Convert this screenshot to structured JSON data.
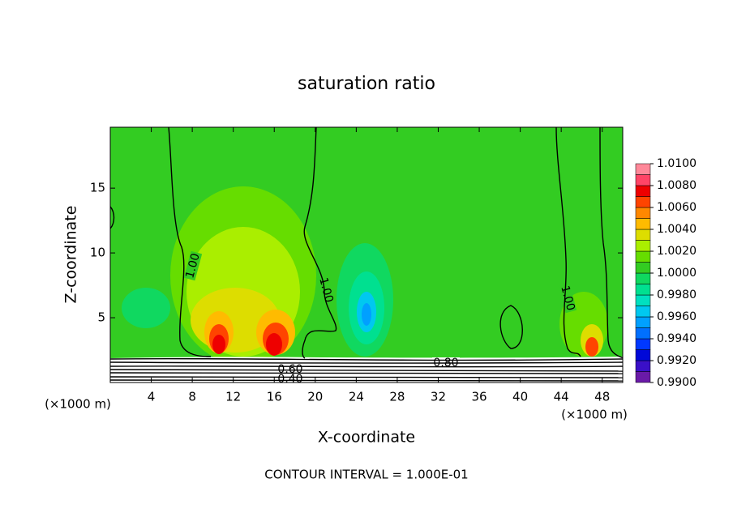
{
  "chart_data": {
    "type": "contour",
    "title": "saturation ratio",
    "x_label": "X-coordinate",
    "y_label": "Z-coordinate",
    "x_unit": "(×1000 m)",
    "y_unit": "(×1000 m)",
    "xlim": [
      0,
      50
    ],
    "xticks": [
      4,
      8,
      12,
      16,
      20,
      24,
      28,
      32,
      36,
      40,
      44,
      48
    ],
    "ylim": [
      0,
      19.7
    ],
    "yticks": [
      5,
      10,
      15
    ],
    "colorbar": {
      "levels": [
        0.99,
        0.991,
        0.992,
        0.993,
        0.994,
        0.995,
        0.996,
        0.997,
        0.998,
        0.999,
        1.0,
        1.001,
        1.002,
        1.003,
        1.004,
        1.005,
        1.006,
        1.007,
        1.008,
        1.009,
        1.01
      ],
      "colors": [
        "#6a1aa8",
        "#3a10c8",
        "#0008d8",
        "#0038ff",
        "#0070ff",
        "#00a0ff",
        "#00c8f0",
        "#00e0c0",
        "#00e090",
        "#10d860",
        "#33cc22",
        "#66dd00",
        "#aaee00",
        "#dddd00",
        "#ffbb00",
        "#ff8800",
        "#ff4400",
        "#ee0000",
        "#ff4466",
        "#ff8899"
      ],
      "ticks": [
        {
          "value": 0.99,
          "label": "0.9900"
        },
        {
          "value": 0.992,
          "label": "0.9920"
        },
        {
          "value": 0.994,
          "label": "0.9940"
        },
        {
          "value": 0.996,
          "label": "0.9960"
        },
        {
          "value": 0.998,
          "label": "0.9980"
        },
        {
          "value": 1.0,
          "label": "1.0000"
        },
        {
          "value": 1.002,
          "label": "1.0020"
        },
        {
          "value": 1.004,
          "label": "1.0040"
        },
        {
          "value": 1.006,
          "label": "1.0060"
        },
        {
          "value": 1.008,
          "label": "1.0080"
        },
        {
          "value": 1.01,
          "label": "1.0100"
        }
      ]
    },
    "contour_labels": [
      "1.00",
      "1.00",
      "1.00",
      "0.80",
      "0.60",
      "0.40"
    ],
    "footnote": "CONTOUR INTERVAL = 1.000E-01"
  }
}
